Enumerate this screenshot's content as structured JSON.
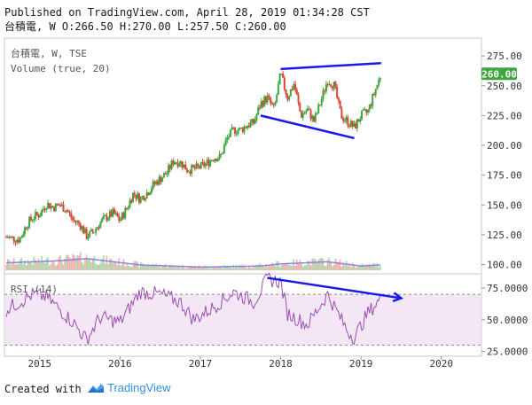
{
  "header": {
    "published": "Published on TradingView.com, April 28, 2019 01:34:28 CST",
    "ohlc": "台積電, W O:266.50 H:270.00 L:257.50 C:260.00"
  },
  "footer": {
    "created_with": "Created with",
    "brand": "TradingView"
  },
  "colors": {
    "up": "#3da63d",
    "down": "#d8473a",
    "trendline": "#1a1ae6",
    "volume_ma": "#8f82e0",
    "rsi_line": "#9c4fb0",
    "rsi_band": "#f3e6f5",
    "price_label_bg": "#3da63d"
  },
  "chart_data": [
    {
      "type": "candlestick",
      "title": "台積電, W, TSE",
      "volume_label": "Volume (true, 20)",
      "ylim": [
        90,
        290
      ],
      "y_ticks": [
        "100.00",
        "125.00",
        "150.00",
        "175.00",
        "200.00",
        "225.00",
        "250.00",
        "275.00"
      ],
      "last_price_label": "260.00",
      "x_ticks": [
        "2015",
        "2016",
        "2017",
        "2018",
        "2019",
        "2020"
      ],
      "x_range": [
        "2014-08",
        "2020-06"
      ],
      "price_path": [
        {
          "t": "2014-08",
          "v": 123
        },
        {
          "t": "2014-09",
          "v": 122
        },
        {
          "t": "2014-10",
          "v": 121
        },
        {
          "t": "2014-11",
          "v": 133
        },
        {
          "t": "2014-12",
          "v": 140
        },
        {
          "t": "2015-01",
          "v": 142
        },
        {
          "t": "2015-02",
          "v": 151
        },
        {
          "t": "2015-03",
          "v": 148
        },
        {
          "t": "2015-04",
          "v": 150
        },
        {
          "t": "2015-05",
          "v": 146
        },
        {
          "t": "2015-06",
          "v": 137
        },
        {
          "t": "2015-07",
          "v": 134
        },
        {
          "t": "2015-08",
          "v": 124
        },
        {
          "t": "2015-09",
          "v": 127
        },
        {
          "t": "2015-10",
          "v": 135
        },
        {
          "t": "2015-11",
          "v": 140
        },
        {
          "t": "2015-12",
          "v": 143
        },
        {
          "t": "2016-01",
          "v": 137
        },
        {
          "t": "2016-02",
          "v": 147
        },
        {
          "t": "2016-03",
          "v": 160
        },
        {
          "t": "2016-04",
          "v": 155
        },
        {
          "t": "2016-05",
          "v": 160
        },
        {
          "t": "2016-06",
          "v": 167
        },
        {
          "t": "2016-07",
          "v": 172
        },
        {
          "t": "2016-08",
          "v": 177
        },
        {
          "t": "2016-09",
          "v": 187
        },
        {
          "t": "2016-10",
          "v": 186
        },
        {
          "t": "2016-11",
          "v": 180
        },
        {
          "t": "2016-12",
          "v": 180
        },
        {
          "t": "2017-01",
          "v": 182
        },
        {
          "t": "2017-02",
          "v": 185
        },
        {
          "t": "2017-03",
          "v": 190
        },
        {
          "t": "2017-04",
          "v": 190
        },
        {
          "t": "2017-05",
          "v": 206
        },
        {
          "t": "2017-06",
          "v": 213
        },
        {
          "t": "2017-07",
          "v": 213
        },
        {
          "t": "2017-08",
          "v": 217
        },
        {
          "t": "2017-09",
          "v": 219
        },
        {
          "t": "2017-10",
          "v": 235
        },
        {
          "t": "2017-11",
          "v": 240
        },
        {
          "t": "2017-12",
          "v": 230
        },
        {
          "t": "2018-01",
          "v": 260
        },
        {
          "t": "2018-02",
          "v": 240
        },
        {
          "t": "2018-03",
          "v": 252
        },
        {
          "t": "2018-04",
          "v": 225
        },
        {
          "t": "2018-05",
          "v": 230
        },
        {
          "t": "2018-06",
          "v": 220
        },
        {
          "t": "2018-07",
          "v": 237
        },
        {
          "t": "2018-08",
          "v": 255
        },
        {
          "t": "2018-09",
          "v": 250
        },
        {
          "t": "2018-10",
          "v": 225
        },
        {
          "t": "2018-11",
          "v": 220
        },
        {
          "t": "2018-12",
          "v": 215
        },
        {
          "t": "2019-01",
          "v": 225
        },
        {
          "t": "2019-02",
          "v": 228
        },
        {
          "t": "2019-03",
          "v": 244
        },
        {
          "t": "2019-04",
          "v": 260
        }
      ],
      "volume_profile": [
        {
          "t": "2014-08",
          "v": 0.35
        },
        {
          "t": "2015-04",
          "v": 0.45
        },
        {
          "t": "2015-08",
          "v": 0.55
        },
        {
          "t": "2016-04",
          "v": 0.25
        },
        {
          "t": "2017-01",
          "v": 0.15
        },
        {
          "t": "2017-10",
          "v": 0.2
        },
        {
          "t": "2018-01",
          "v": 0.3
        },
        {
          "t": "2018-08",
          "v": 0.4
        },
        {
          "t": "2019-01",
          "v": 0.2
        },
        {
          "t": "2019-04",
          "v": 0.25
        }
      ],
      "annotations": [
        {
          "type": "trendline",
          "from": {
            "t": "2018-01",
            "v": 264
          },
          "to": {
            "t": "2019-04",
            "v": 269
          }
        },
        {
          "type": "trendline",
          "from": {
            "t": "2017-10",
            "v": 225
          },
          "to": {
            "t": "2018-12",
            "v": 206
          }
        }
      ]
    },
    {
      "type": "line",
      "title": "RSI (14)",
      "ylim": [
        20,
        90
      ],
      "y_ticks": [
        "25.0000",
        "50.0000",
        "75.0000"
      ],
      "band": [
        30,
        70
      ],
      "rsi_path": [
        {
          "t": "2014-08",
          "v": 58
        },
        {
          "t": "2014-12",
          "v": 70
        },
        {
          "t": "2015-02",
          "v": 68
        },
        {
          "t": "2015-06",
          "v": 48
        },
        {
          "t": "2015-08",
          "v": 34
        },
        {
          "t": "2015-10",
          "v": 52
        },
        {
          "t": "2016-01",
          "v": 48
        },
        {
          "t": "2016-04",
          "v": 72
        },
        {
          "t": "2016-07",
          "v": 70
        },
        {
          "t": "2016-10",
          "v": 64
        },
        {
          "t": "2016-12",
          "v": 50
        },
        {
          "t": "2017-03",
          "v": 60
        },
        {
          "t": "2017-06",
          "v": 72
        },
        {
          "t": "2017-09",
          "v": 64
        },
        {
          "t": "2017-11",
          "v": 82
        },
        {
          "t": "2018-01",
          "v": 80
        },
        {
          "t": "2018-02",
          "v": 55
        },
        {
          "t": "2018-05",
          "v": 46
        },
        {
          "t": "2018-08",
          "v": 70
        },
        {
          "t": "2018-11",
          "v": 41
        },
        {
          "t": "2018-12",
          "v": 36
        },
        {
          "t": "2019-02",
          "v": 55
        },
        {
          "t": "2019-04",
          "v": 67
        }
      ],
      "annotations": [
        {
          "type": "arrow",
          "from": {
            "t": "2017-11",
            "v": 83
          },
          "to": {
            "t": "2019-07",
            "v": 67
          }
        }
      ]
    }
  ]
}
